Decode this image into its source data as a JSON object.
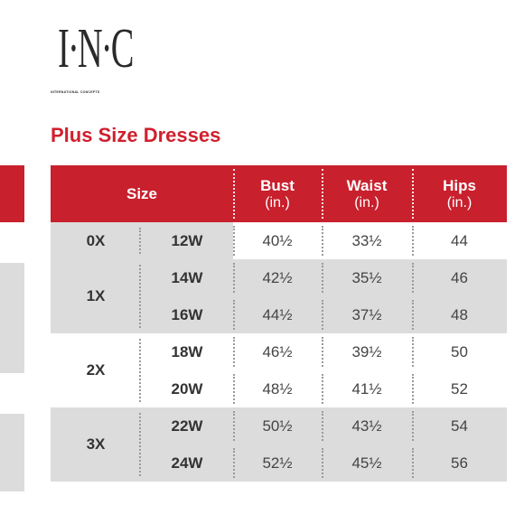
{
  "brand": {
    "mark": "I·N·C",
    "sub": "INTERNATIONAL CONCEPTS"
  },
  "title": "Plus Size Dresses",
  "colors": {
    "header_red": "#c8202d",
    "title_red": "#d0202e",
    "shade": "#dcdcdc"
  },
  "table": {
    "headers": {
      "size": "Size",
      "bust": "Bust",
      "bust_unit": "(in.)",
      "waist": "Waist",
      "waist_unit": "(in.)",
      "hips": "Hips",
      "hips_unit": "(in.)"
    },
    "groups": [
      {
        "size": "0X",
        "rows": [
          {
            "w": "12W",
            "bust": "40½",
            "waist": "33½",
            "hips": "44"
          }
        ]
      },
      {
        "size": "1X",
        "rows": [
          {
            "w": "14W",
            "bust": "42½",
            "waist": "35½",
            "hips": "46"
          },
          {
            "w": "16W",
            "bust": "44½",
            "waist": "37½",
            "hips": "48"
          }
        ]
      },
      {
        "size": "2X",
        "rows": [
          {
            "w": "18W",
            "bust": "46½",
            "waist": "39½",
            "hips": "50"
          },
          {
            "w": "20W",
            "bust": "48½",
            "waist": "41½",
            "hips": "52"
          }
        ]
      },
      {
        "size": "3X",
        "rows": [
          {
            "w": "22W",
            "bust": "50½",
            "waist": "43½",
            "hips": "54"
          },
          {
            "w": "24W",
            "bust": "52½",
            "waist": "45½",
            "hips": "56"
          }
        ]
      }
    ]
  }
}
